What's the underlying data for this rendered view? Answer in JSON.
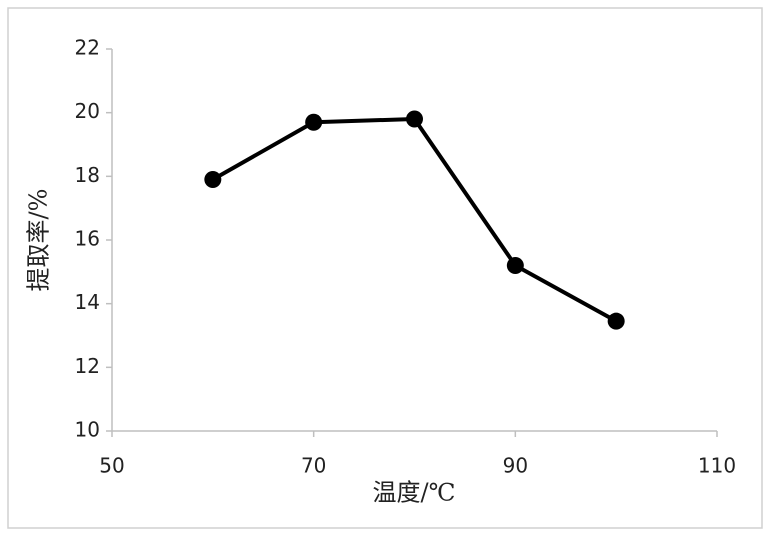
{
  "chart_data": {
    "type": "line",
    "x_label": "温度/℃",
    "y_label": "提取率/%",
    "x": [
      60,
      70,
      80,
      90,
      100
    ],
    "series": [
      {
        "color": "#000000",
        "values": [
          17.9,
          19.7,
          19.8,
          15.2,
          13.45
        ]
      }
    ],
    "xlim": [
      50,
      110
    ],
    "xticks": [
      50,
      70,
      90,
      110
    ],
    "ylim": [
      10,
      22
    ],
    "yticks": [
      10,
      12,
      14,
      16,
      18,
      20,
      22
    ],
    "grid": false
  }
}
